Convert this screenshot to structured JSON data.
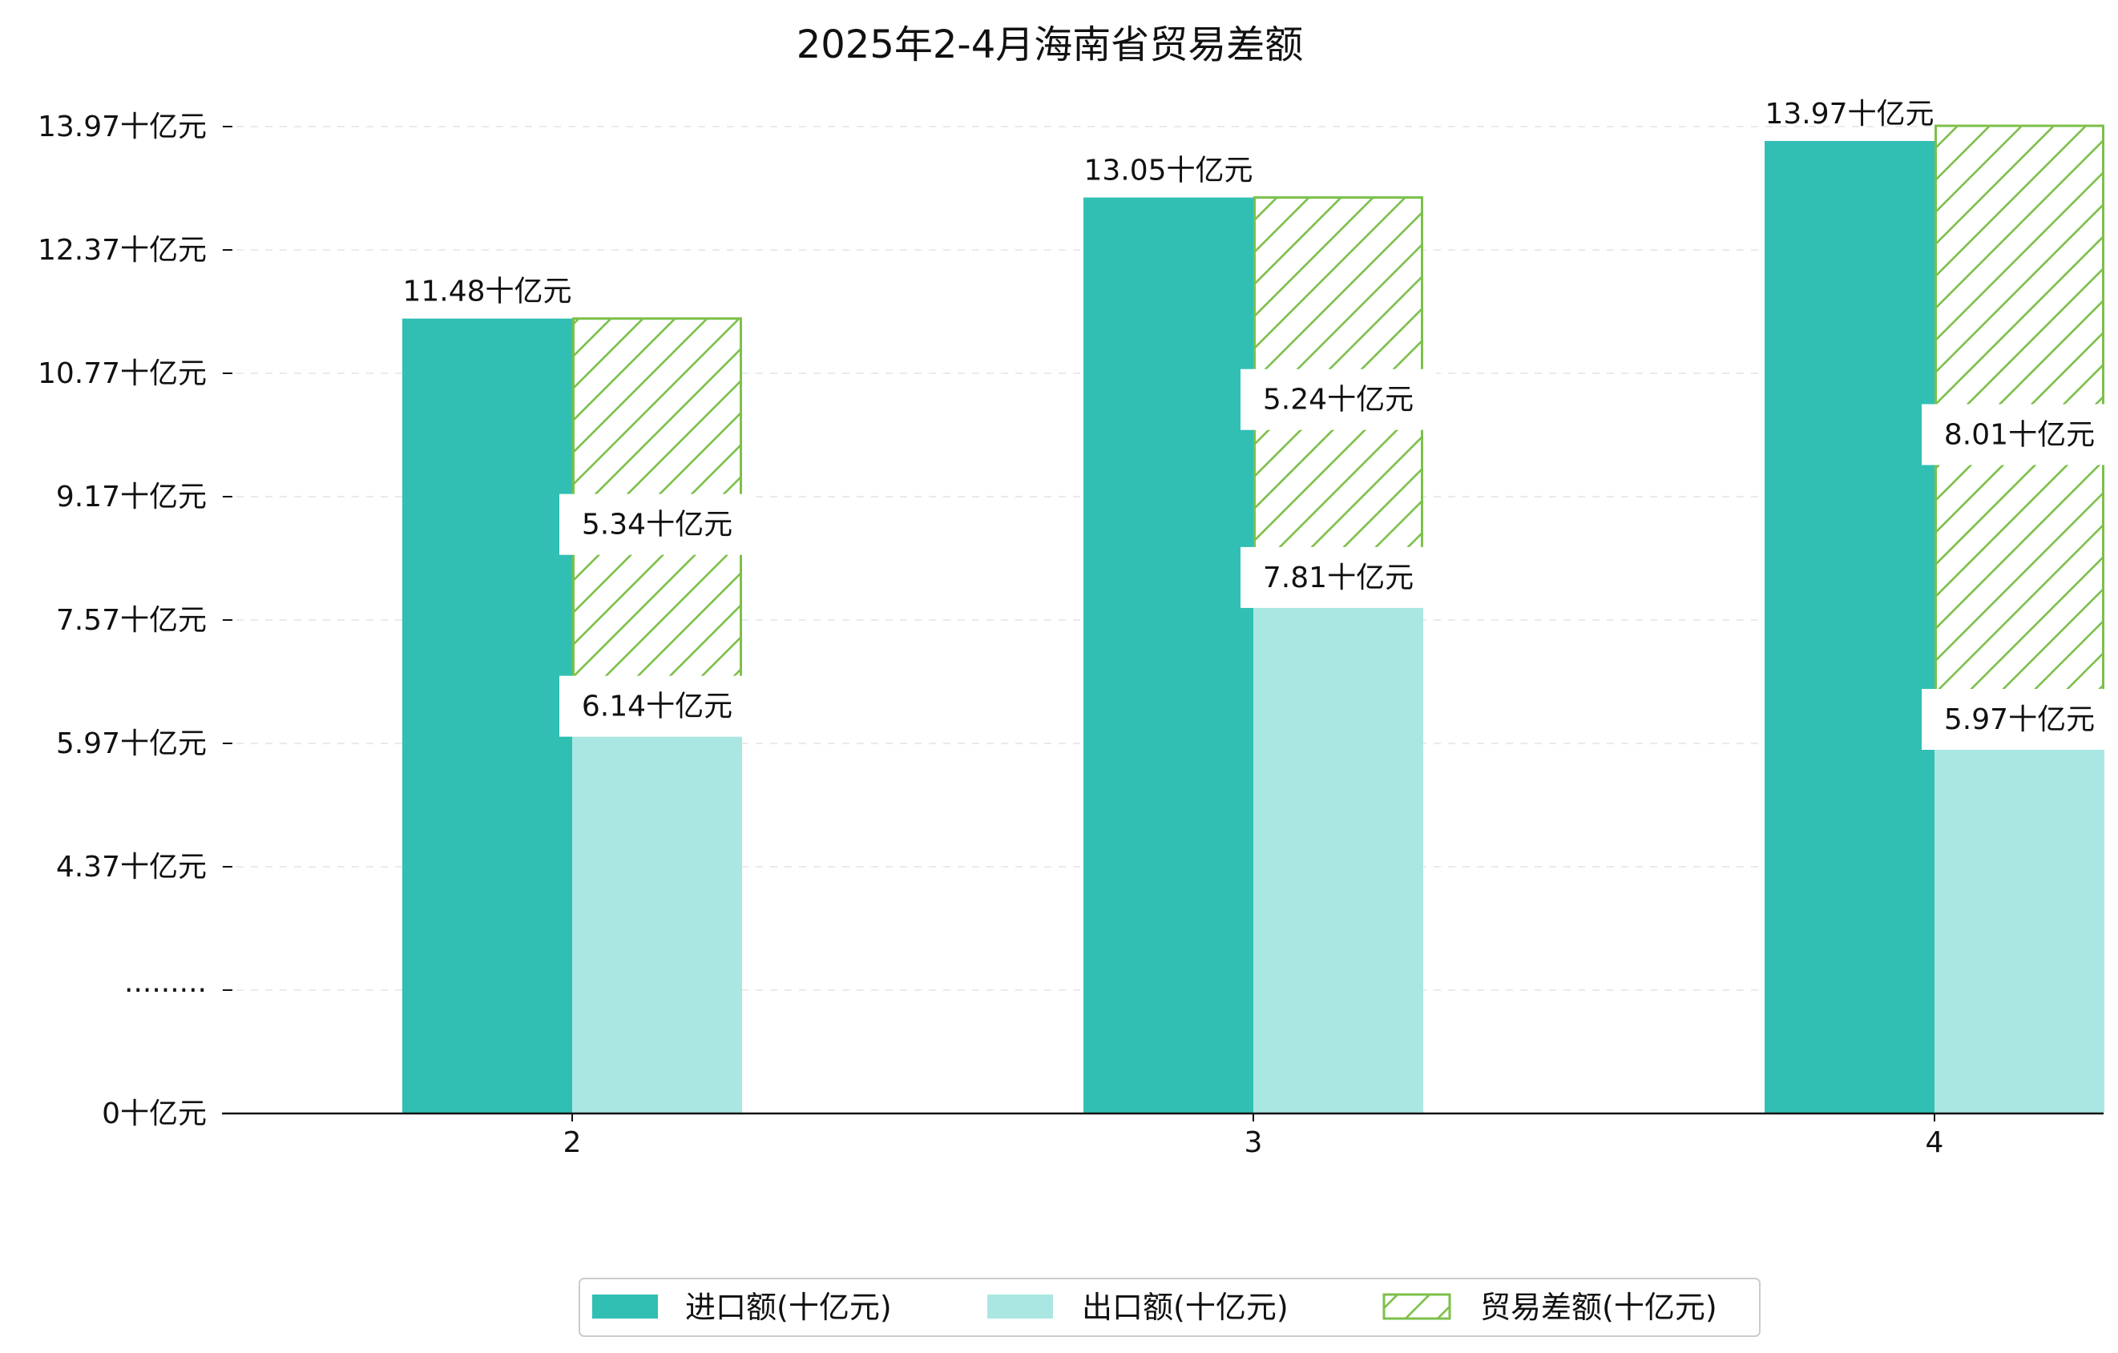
{
  "chart_data": {
    "type": "bar",
    "title": "2025年2-4月海南省贸易差额",
    "categories": [
      "2",
      "3",
      "4"
    ],
    "series": [
      {
        "name": "进口额(十亿元)",
        "values": [
          11.48,
          13.05,
          13.97
        ],
        "color": "#31bfb3",
        "style": "solid"
      },
      {
        "name": "出口额(十亿元)",
        "values": [
          6.14,
          7.81,
          5.97
        ],
        "color": "#abe7e2",
        "style": "solid"
      },
      {
        "name": "贸易差额(十亿元)",
        "values": [
          5.34,
          5.24,
          8.01
        ],
        "color": "#7cc04a",
        "style": "hatched"
      }
    ],
    "data_labels": {
      "import": [
        "11.48十亿元",
        "13.05十亿元",
        "13.97十亿元"
      ],
      "export": [
        "6.14十亿元",
        "7.81十亿元",
        "5.97十亿元"
      ],
      "balance": [
        "5.34十亿元",
        "5.24十亿元",
        "8.01十亿元"
      ]
    },
    "y_ticks": [
      {
        "label": "0十亿元",
        "value": 0
      },
      {
        "label": "·········",
        "value": null
      },
      {
        "label": "4.37十亿元",
        "value": 4.37
      },
      {
        "label": "5.97十亿元",
        "value": 5.97
      },
      {
        "label": "7.57十亿元",
        "value": 7.57
      },
      {
        "label": "9.17十亿元",
        "value": 9.17
      },
      {
        "label": "10.77十亿元",
        "value": 10.77
      },
      {
        "label": "12.37十亿元",
        "value": 12.37
      },
      {
        "label": "13.97十亿元",
        "value": 13.97
      }
    ],
    "axis_break": "broken y-axis below 4.37",
    "xlabel": "",
    "ylabel": "",
    "grid": "horizontal dashed",
    "legend_position": "bottom-center"
  }
}
